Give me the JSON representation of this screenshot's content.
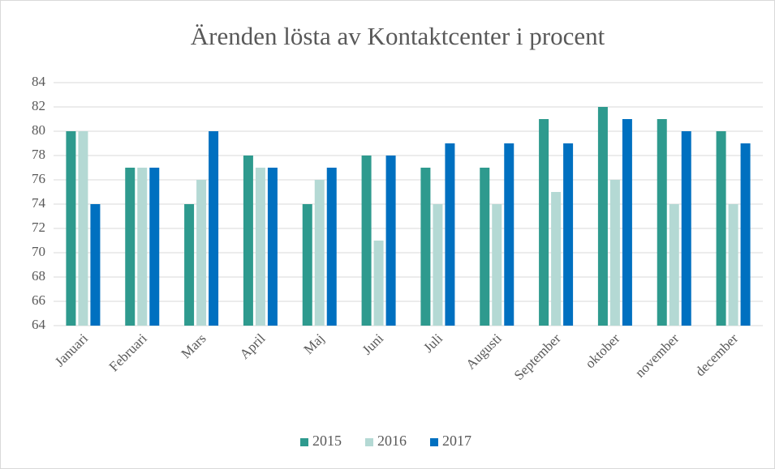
{
  "chart_data": {
    "type": "bar",
    "title": "Ärenden lösta av Kontaktcenter i procent",
    "categories": [
      "Januari",
      "Februari",
      "Mars",
      "April",
      "Maj",
      "Juni",
      "Juli",
      "Augusti",
      "September",
      "oktober",
      "november",
      "december"
    ],
    "series": [
      {
        "name": "2015",
        "color": "#2e9a8e",
        "values": [
          80,
          77,
          74,
          78,
          74,
          78,
          77,
          77,
          81,
          82,
          81,
          80
        ]
      },
      {
        "name": "2016",
        "color": "#b4d9d4",
        "values": [
          80,
          77,
          76,
          77,
          76,
          71,
          74,
          74,
          75,
          76,
          74,
          74
        ]
      },
      {
        "name": "2017",
        "color": "#0070c0",
        "values": [
          74,
          77,
          80,
          77,
          77,
          78,
          79,
          79,
          79,
          81,
          80,
          79
        ]
      }
    ],
    "ylim": [
      64,
      84
    ],
    "yticks": [
      64,
      66,
      68,
      70,
      72,
      74,
      76,
      78,
      80,
      82,
      84
    ],
    "grid": true,
    "legend": "bottom"
  }
}
